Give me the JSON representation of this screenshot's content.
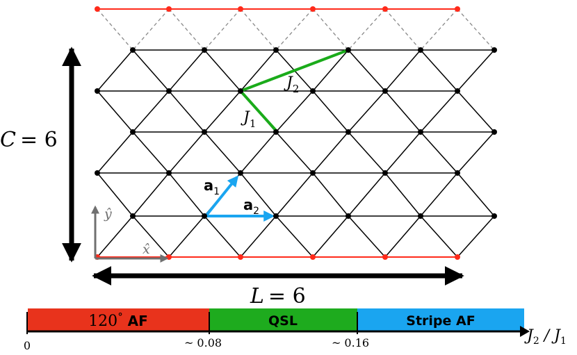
{
  "lattice": {
    "c_label_var": "C",
    "c_label_eq": "= 6",
    "l_label_var": "L",
    "l_label_eq": "= 6",
    "j1_label": "J",
    "j1_sub": "1",
    "j2_label": "J",
    "j2_sub": "2",
    "a1_label": "a",
    "a1_sub": "1",
    "a2_label": "a",
    "a2_sub": "2",
    "x_hat": "x̂",
    "y_hat": "ŷ",
    "colors": {
      "bond": "#000000",
      "site": "#000000",
      "boundary": "#ff2a1a",
      "ghost_bond": "#888888",
      "coupling": "#1aab1a",
      "lattice_vector": "#1aa5f0",
      "axis": "#707070"
    }
  },
  "phase_diagram": {
    "phases": [
      {
        "name": "120° AF",
        "num": "120",
        "deg": "°",
        "rest": " AF",
        "color": "#e8331c"
      },
      {
        "name": "QSL",
        "color": "#1eab1e"
      },
      {
        "name": "Stripe AF",
        "color": "#1aa5f0"
      }
    ],
    "ticks": [
      "0",
      "~ 0.08",
      "~ 0.16"
    ],
    "axis_label": "J2 / J1",
    "axis_label_J": "J",
    "axis_label_sub2": "2",
    "axis_label_slash": " / ",
    "axis_label_sub1": "1"
  }
}
